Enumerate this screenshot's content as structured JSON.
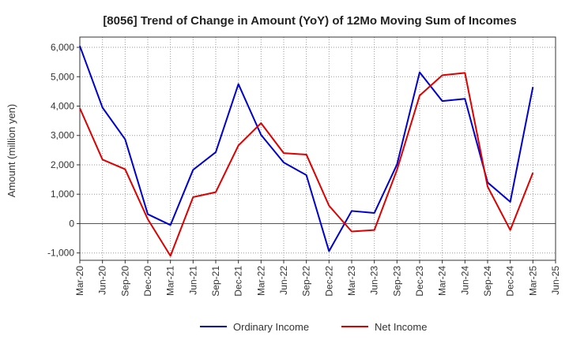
{
  "chart_data": {
    "type": "line",
    "title": "[8056]  Trend of Change in Amount (YoY) of 12Mo Moving Sum of Incomes",
    "xlabel": "",
    "ylabel": "Amount (million yen)",
    "ylim": [
      -1250,
      6350
    ],
    "y_ticks": [
      -1000,
      0,
      1000,
      2000,
      3000,
      4000,
      5000,
      6000
    ],
    "y_tick_labels": [
      "-1,000",
      "0",
      "1,000",
      "2,000",
      "3,000",
      "4,000",
      "5,000",
      "6,000"
    ],
    "grid": true,
    "legend_position": "bottom-center",
    "categories": [
      "Mar-20",
      "Jun-20",
      "Sep-20",
      "Dec-20",
      "Mar-21",
      "Jun-21",
      "Sep-21",
      "Dec-21",
      "Mar-22",
      "Jun-22",
      "Sep-22",
      "Dec-22",
      "Mar-23",
      "Jun-23",
      "Sep-23",
      "Dec-23",
      "Mar-24",
      "Jun-24",
      "Sep-24",
      "Dec-24",
      "Mar-25",
      "Jun-25"
    ],
    "series": [
      {
        "name": "Ordinary Income",
        "color": "#0000cc",
        "values": [
          6050,
          3950,
          2870,
          320,
          -50,
          1830,
          2430,
          4750,
          3020,
          2080,
          1650,
          -940,
          430,
          360,
          2010,
          5150,
          4170,
          4250,
          1400,
          740,
          4650,
          null
        ]
      },
      {
        "name": "Net Income",
        "color": "#dd0000",
        "values": [
          3930,
          2180,
          1850,
          150,
          -1100,
          900,
          1070,
          2660,
          3420,
          2400,
          2350,
          610,
          -270,
          -220,
          1830,
          4360,
          5050,
          5130,
          1260,
          -220,
          1730,
          null
        ]
      }
    ]
  }
}
